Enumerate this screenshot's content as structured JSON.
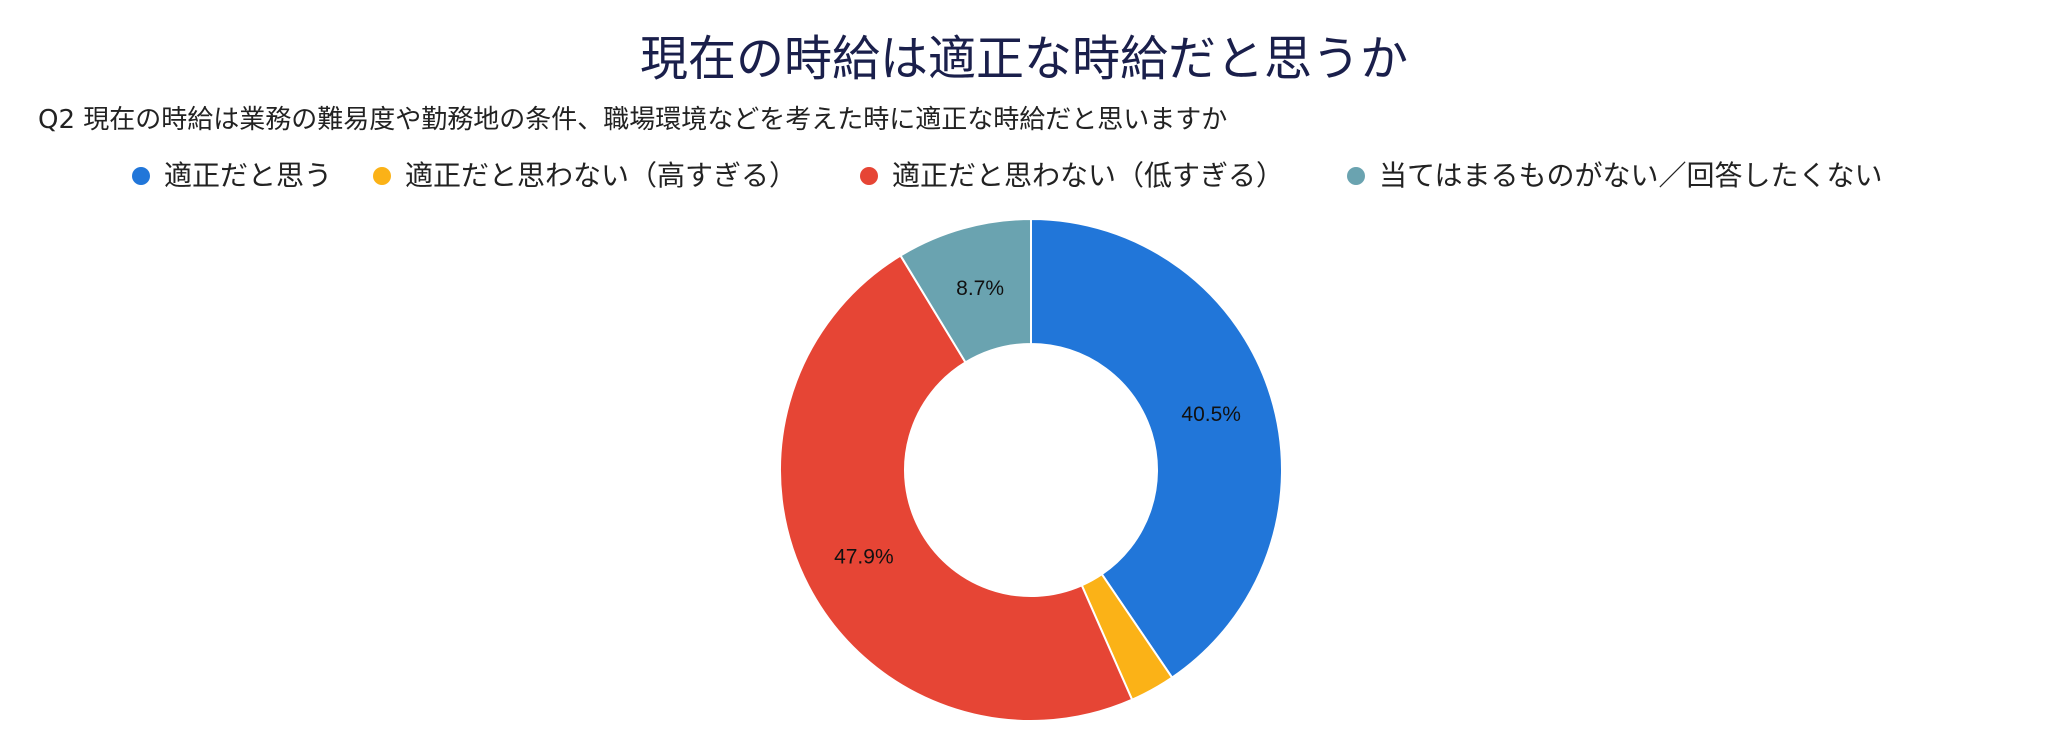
{
  "chart_data": {
    "type": "pie",
    "donut": true,
    "title": "現在の時給は適正な時給だと思うか",
    "subtitle": "Q2 現在の時給は業務の難易度や勤務地の条件、職場環境などを考えた時に適正な時給だと思いますか",
    "legend_position": "top",
    "slices": [
      {
        "name": "適正だと思う",
        "value": 40.5,
        "label": "40.5%",
        "color": "#2176d9"
      },
      {
        "name": "適正だと思わない（高すぎる）",
        "value": 2.9,
        "label": "",
        "color": "#fbb217"
      },
      {
        "name": "適正だと思わない（低すぎる）",
        "value": 47.9,
        "label": "47.9%",
        "color": "#e64535"
      },
      {
        "name": "当てはまるものがない／回答したくない",
        "value": 8.7,
        "label": "8.7%",
        "color": "#6aa3b0"
      }
    ]
  }
}
